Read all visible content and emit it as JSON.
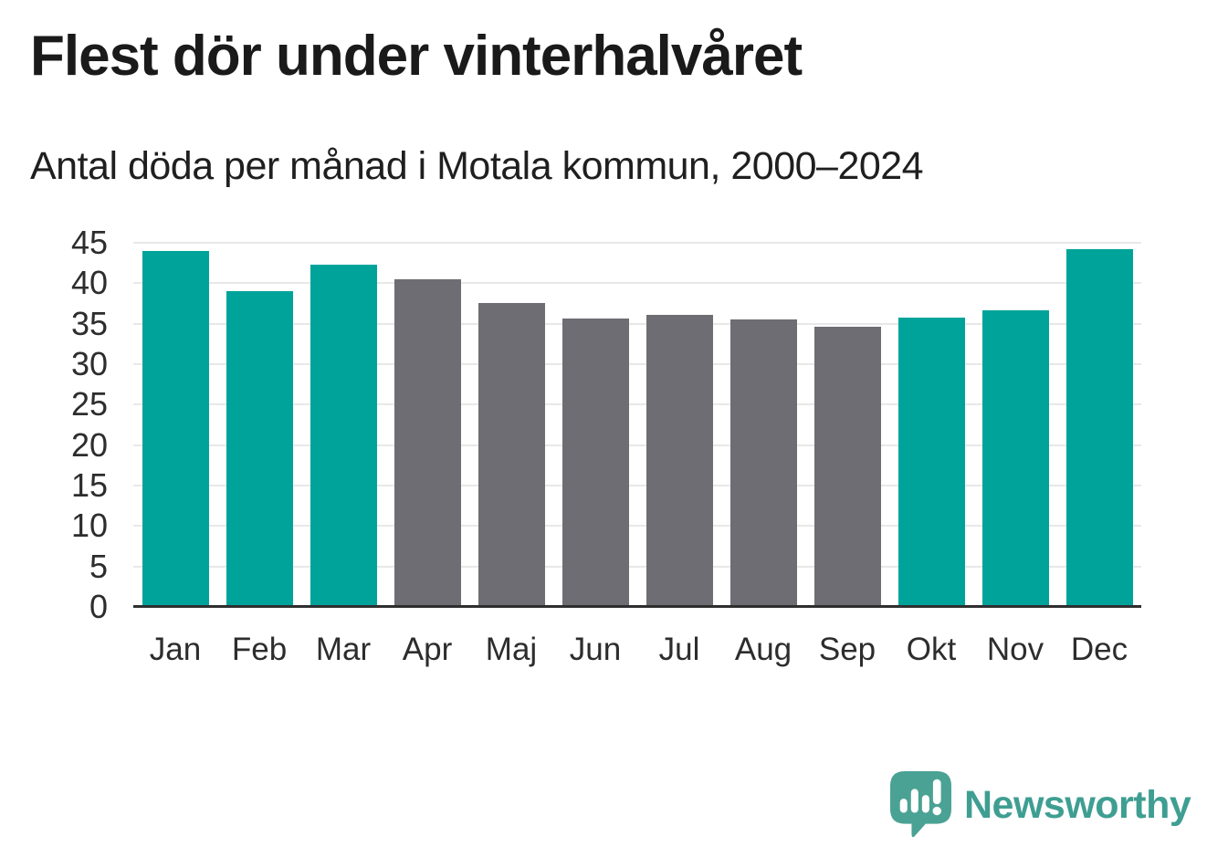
{
  "title": "Flest dör under vinterhalvåret",
  "subtitle": "Antal döda per månad i Motala kommun, 2000–2024",
  "chart_data": {
    "type": "bar",
    "title": "Flest dör under vinterhalvåret",
    "subtitle": "Antal döda per månad i Motala kommun, 2000–2024",
    "categories": [
      "Jan",
      "Feb",
      "Mar",
      "Apr",
      "Maj",
      "Jun",
      "Jul",
      "Aug",
      "Sep",
      "Okt",
      "Nov",
      "Dec"
    ],
    "values": [
      44.0,
      39.0,
      42.3,
      40.5,
      37.6,
      35.6,
      36.1,
      35.5,
      34.6,
      35.8,
      36.6,
      44.2
    ],
    "bar_colors": [
      "winter",
      "winter",
      "winter",
      "summer",
      "summer",
      "summer",
      "summer",
      "summer",
      "summer",
      "winter",
      "winter",
      "winter"
    ],
    "colors": {
      "winter": "#00a39a",
      "summer": "#6e6d73"
    },
    "xlabel": "",
    "ylabel": "",
    "ylim": [
      0,
      45
    ],
    "yticks": [
      0,
      5,
      10,
      15,
      20,
      25,
      30,
      35,
      40,
      45
    ],
    "grid": true,
    "legend": "none",
    "gridline_color": "#e8e8e8",
    "axis_color": "#2f2f2f"
  },
  "branding": {
    "logo_text": "Newsworthy",
    "logo_icon": "newsworthy-bubble-chart-icon",
    "logo_color": "#4aa294",
    "text_color": "#3f9e92"
  }
}
